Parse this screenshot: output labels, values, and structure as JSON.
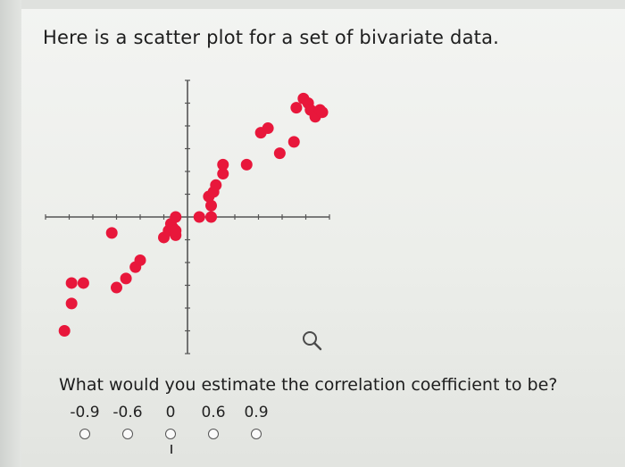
{
  "question": {
    "title": "Here is a scatter plot for a set of bivariate data.",
    "prompt": "What would you estimate the correlation coefficient to be?"
  },
  "options": [
    {
      "label": "-0.9",
      "selected": false
    },
    {
      "label": "-0.6",
      "selected": false
    },
    {
      "label": "0",
      "selected": false
    },
    {
      "label": "0.6",
      "selected": false
    },
    {
      "label": "0.9",
      "selected": false
    }
  ],
  "icons": {
    "zoom": "magnifier-icon"
  },
  "colors": {
    "points": "#e8173b",
    "axes": "#555555",
    "text": "#1d1d1d"
  },
  "chart_data": {
    "type": "scatter",
    "title": "",
    "xlabel": "",
    "ylabel": "",
    "xlim": [
      -6,
      6
    ],
    "ylim": [
      -6,
      6
    ],
    "grid": false,
    "axes_through_origin": true,
    "points": [
      [
        -5.2,
        -5.0
      ],
      [
        -4.9,
        -3.8
      ],
      [
        -4.9,
        -2.9
      ],
      [
        -4.4,
        -2.9
      ],
      [
        -3.0,
        -3.1
      ],
      [
        -2.6,
        -2.7
      ],
      [
        -2.2,
        -2.2
      ],
      [
        -2.0,
        -1.9
      ],
      [
        -3.2,
        -0.7
      ],
      [
        -1.0,
        -0.9
      ],
      [
        -0.8,
        -0.6
      ],
      [
        -0.5,
        -0.8
      ],
      [
        -0.7,
        -0.3
      ],
      [
        -0.6,
        -0.5
      ],
      [
        -0.5,
        0.0
      ],
      [
        -0.5,
        -0.6
      ],
      [
        0.5,
        0.0
      ],
      [
        1.0,
        0.0
      ],
      [
        1.0,
        0.5
      ],
      [
        0.9,
        0.9
      ],
      [
        1.1,
        1.1
      ],
      [
        1.2,
        1.4
      ],
      [
        1.5,
        1.9
      ],
      [
        1.5,
        2.3
      ],
      [
        2.5,
        2.3
      ],
      [
        3.1,
        3.7
      ],
      [
        3.4,
        3.9
      ],
      [
        3.9,
        2.8
      ],
      [
        4.5,
        3.3
      ],
      [
        4.6,
        4.8
      ],
      [
        4.9,
        5.2
      ],
      [
        5.1,
        5.0
      ],
      [
        5.2,
        4.7
      ],
      [
        5.4,
        4.4
      ],
      [
        5.6,
        4.7
      ],
      [
        5.7,
        4.6
      ]
    ]
  }
}
